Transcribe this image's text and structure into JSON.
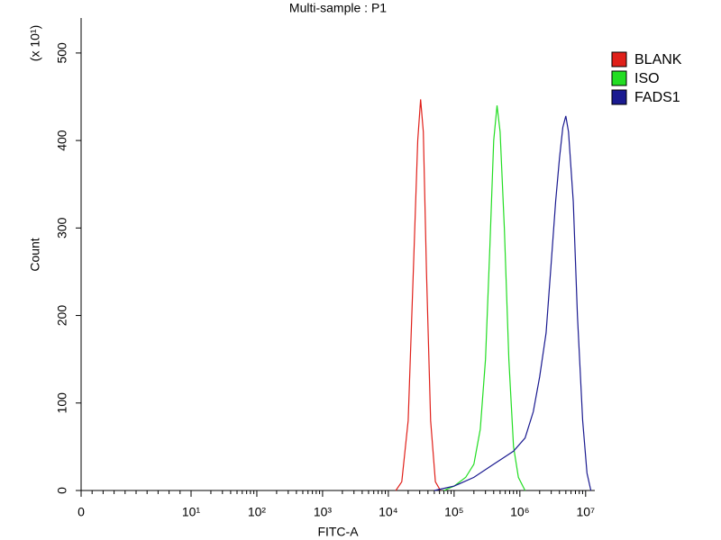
{
  "chart_data": {
    "type": "histogram-line",
    "title": "Multi-sample : P1",
    "xlabel": "FITC-A",
    "ylabel": "Count",
    "y_multiplier": "(x 10¹)",
    "xscale": "biexponential",
    "xlim": [
      0,
      13800000
    ],
    "xticks": [
      0,
      {
        "value": 10,
        "label": "10¹"
      },
      {
        "value": 100,
        "label": "10²"
      },
      {
        "value": 1000,
        "label": "10³"
      },
      {
        "value": 10000,
        "label": "10⁴"
      },
      {
        "value": 100000,
        "label": "10⁵"
      },
      {
        "value": 1000000,
        "label": "10⁶"
      },
      {
        "value": 10000000,
        "label": "10⁷"
      }
    ],
    "ylim": [
      0,
      540
    ],
    "yticks": [
      0,
      100,
      200,
      300,
      400,
      500
    ],
    "legend": "right",
    "series": [
      {
        "name": "BLANK",
        "color": "#e0201a",
        "x": [
          13000,
          16000,
          20000,
          24000,
          28000,
          31000,
          34000,
          38000,
          44000,
          52000,
          62000
        ],
        "values": [
          0,
          10,
          80,
          250,
          400,
          447,
          410,
          250,
          80,
          10,
          0
        ]
      },
      {
        "name": "ISO",
        "color": "#22dd22",
        "x": [
          70000,
          100000,
          150000,
          200000,
          250000,
          300000,
          350000,
          400000,
          450000,
          500000,
          580000,
          680000,
          800000,
          950000,
          1200000
        ],
        "values": [
          0,
          5,
          15,
          30,
          70,
          150,
          280,
          400,
          440,
          410,
          300,
          150,
          50,
          15,
          0
        ]
      },
      {
        "name": "FADS1",
        "color": "#1a1a90",
        "x": [
          50000,
          100000,
          200000,
          400000,
          800000,
          1200000,
          1600000,
          2000000,
          2500000,
          3000000,
          3500000,
          4000000,
          4500000,
          5000000,
          5500000,
          6500000,
          7500000,
          9000000,
          10500000,
          12000000
        ],
        "values": [
          0,
          5,
          15,
          30,
          45,
          60,
          90,
          130,
          180,
          260,
          330,
          380,
          415,
          428,
          410,
          330,
          200,
          80,
          20,
          0
        ]
      }
    ]
  }
}
